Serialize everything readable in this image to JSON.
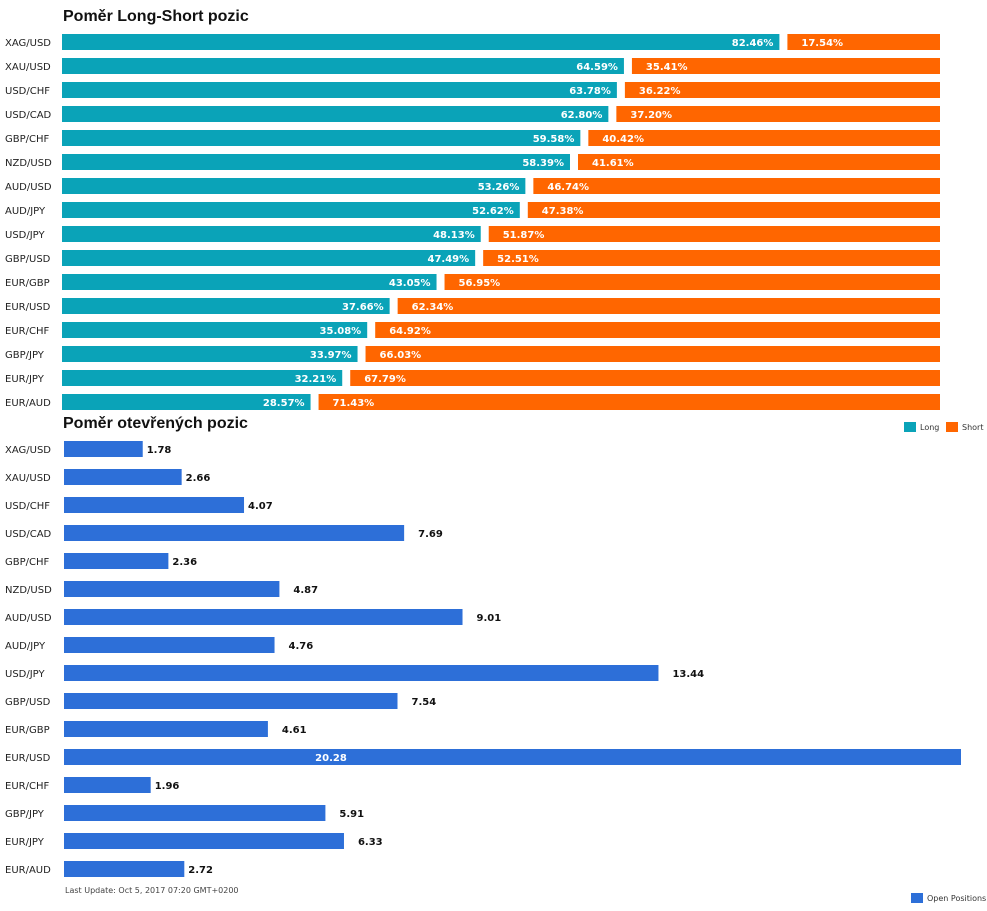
{
  "colors": {
    "long": "#0aa3b8",
    "short": "#ff6600",
    "open": "#2d6fd8"
  },
  "chart_data": [
    {
      "type": "bar",
      "orientation": "horizontal",
      "stacked": true,
      "title": "Poměr Long-Short pozic",
      "categories": [
        "XAG/USD",
        "XAU/USD",
        "USD/CHF",
        "USD/CAD",
        "GBP/CHF",
        "NZD/USD",
        "AUD/USD",
        "AUD/JPY",
        "USD/JPY",
        "GBP/USD",
        "EUR/GBP",
        "EUR/USD",
        "EUR/CHF",
        "GBP/JPY",
        "EUR/JPY",
        "EUR/AUD"
      ],
      "series": [
        {
          "name": "Long",
          "values": [
            82.46,
            64.59,
            63.78,
            62.8,
            59.58,
            58.39,
            53.26,
            52.62,
            48.13,
            47.49,
            43.05,
            37.66,
            35.08,
            33.97,
            32.21,
            28.57
          ],
          "labels": [
            "82.46%",
            "64.59%",
            "63.78%",
            "62.80%",
            "59.58%",
            "58.39%",
            "53.26%",
            "52.62%",
            "48.13%",
            "47.49%",
            "43.05%",
            "37.66%",
            "35.08%",
            "33.97%",
            "32.21%",
            "28.57%"
          ]
        },
        {
          "name": "Short",
          "values": [
            17.54,
            35.41,
            36.22,
            37.2,
            40.42,
            41.61,
            46.74,
            47.38,
            51.87,
            52.51,
            56.95,
            62.34,
            64.92,
            66.03,
            67.79,
            71.43
          ],
          "labels": [
            "17.54%",
            "35.41%",
            "36.22%",
            "37.20%",
            "40.42%",
            "41.61%",
            "46.74%",
            "47.38%",
            "51.87%",
            "52.51%",
            "56.95%",
            "62.34%",
            "64.92%",
            "66.03%",
            "67.79%",
            "71.43%"
          ]
        }
      ],
      "xlim": [
        0,
        100
      ],
      "grid": false,
      "legend": "bottom-right"
    },
    {
      "type": "bar",
      "orientation": "horizontal",
      "title": "Poměr otevřených pozic",
      "categories": [
        "XAG/USD",
        "XAU/USD",
        "USD/CHF",
        "USD/CAD",
        "GBP/CHF",
        "NZD/USD",
        "AUD/USD",
        "AUD/JPY",
        "USD/JPY",
        "GBP/USD",
        "EUR/GBP",
        "EUR/USD",
        "EUR/CHF",
        "GBP/JPY",
        "EUR/JPY",
        "EUR/AUD"
      ],
      "series": [
        {
          "name": "Open Positions",
          "values": [
            1.78,
            2.66,
            4.07,
            7.69,
            2.36,
            4.87,
            9.01,
            4.76,
            13.44,
            7.54,
            4.61,
            20.28,
            1.96,
            5.91,
            6.33,
            2.72
          ],
          "labels": [
            "1.78",
            "2.66",
            "4.07",
            "7.69",
            "2.36",
            "4.87",
            "9.01",
            "4.76",
            "13.44",
            "7.54",
            "4.61",
            "20.28",
            "1.96",
            "5.91",
            "6.33",
            "2.72"
          ]
        }
      ],
      "xlim": [
        0,
        20.28
      ],
      "grid": false,
      "legend": "bottom-right"
    }
  ],
  "footer": {
    "last_update": "Last Update: Oct 5, 2017 07:20 GMT+0200"
  }
}
